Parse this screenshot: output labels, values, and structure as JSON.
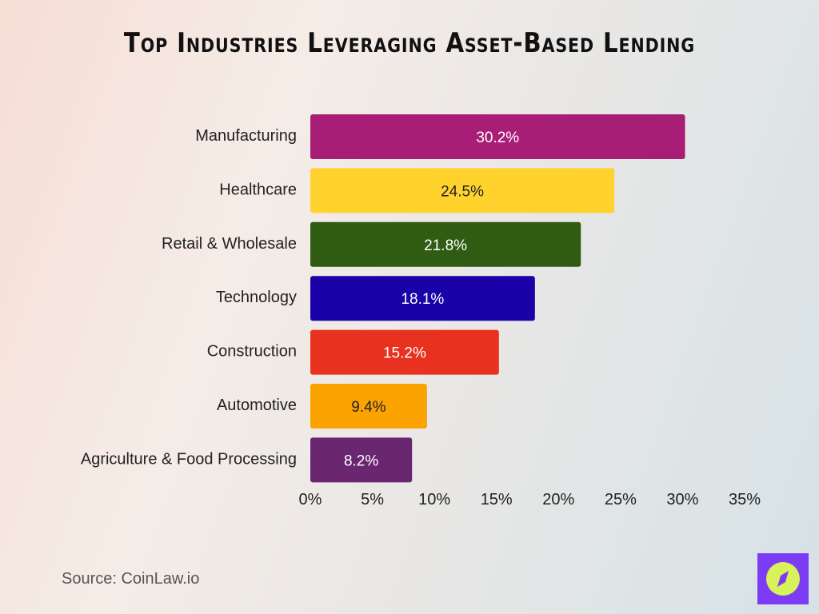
{
  "chart_data": {
    "type": "bar",
    "orientation": "horizontal",
    "title": "Top Industries Leveraging Asset-Based Lending",
    "categories": [
      "Manufacturing",
      "Healthcare",
      "Retail & Wholesale",
      "Technology",
      "Construction",
      "Automotive",
      "Agriculture & Food Processing"
    ],
    "values": [
      30.2,
      24.5,
      21.8,
      18.1,
      15.2,
      9.4,
      8.2
    ],
    "data_labels": [
      "30.2%",
      "24.5%",
      "21.8%",
      "18.1%",
      "15.2%",
      "9.4%",
      "8.2%"
    ],
    "colors": [
      "#a81e77",
      "#ffd22e",
      "#2f5c12",
      "#1a02a8",
      "#e8321f",
      "#fba300",
      "#6b2670"
    ],
    "label_colors": [
      "#ffffff",
      "#222222",
      "#ffffff",
      "#ffffff",
      "#ffffff",
      "#222222",
      "#ffffff"
    ],
    "xlim": [
      0,
      35
    ],
    "xticks": [
      "0%",
      "5%",
      "10%",
      "15%",
      "20%",
      "25%",
      "30%",
      "35%"
    ],
    "grid": false,
    "xlabel": "",
    "ylabel": ""
  },
  "source": "Source: CoinLaw.io",
  "logo": {
    "icon": "compass-icon",
    "background": "#7c3cf5",
    "accent": "#d8f25a"
  }
}
